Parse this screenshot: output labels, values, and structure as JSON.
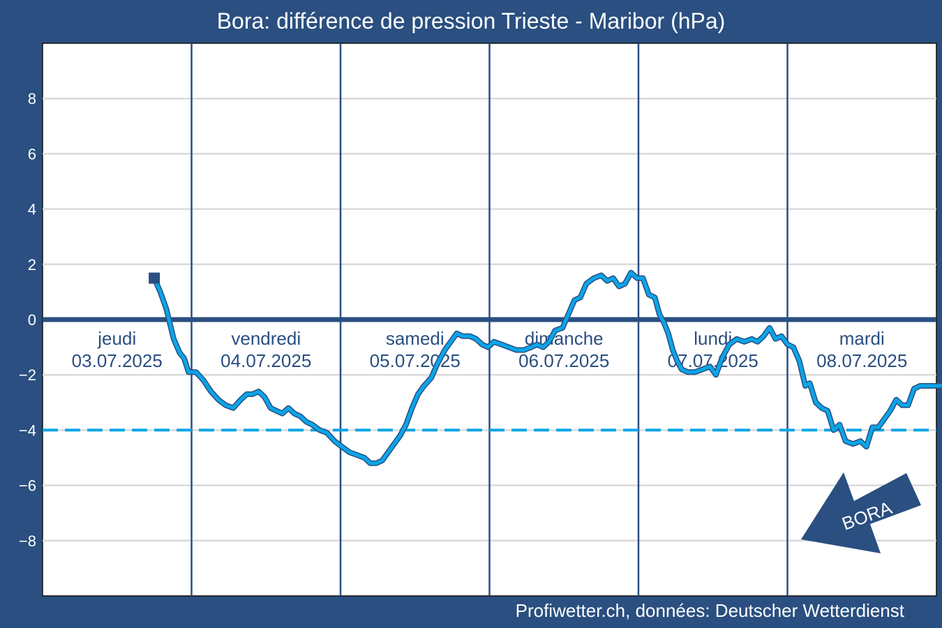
{
  "chart_data": {
    "type": "line",
    "title": "Bora: différence de pression Trieste - Maribor (hPa)",
    "source": "Profiwetter.ch, données: Deutscher Wetterdienst",
    "ylim": [
      -10,
      10
    ],
    "yticks": [
      8,
      6,
      4,
      2,
      0,
      -2,
      -4,
      -6,
      -8
    ],
    "ytick_labels": [
      "8",
      "6",
      "4",
      "2",
      "0",
      "−2",
      "−4",
      "−6",
      "−8"
    ],
    "xlim_days": [
      0,
      6
    ],
    "days": [
      {
        "name": "jeudi",
        "date": "03.07.2025"
      },
      {
        "name": "vendredi",
        "date": "04.07.2025"
      },
      {
        "name": "samedi",
        "date": "05.07.2025"
      },
      {
        "name": "dimanche",
        "date": "06.07.2025"
      },
      {
        "name": "lundi",
        "date": "07.07.2025"
      },
      {
        "name": "mardi",
        "date": "08.07.2025"
      }
    ],
    "reference_lines": [
      {
        "value": 0,
        "style": "solid",
        "color": "#2a4f80"
      },
      {
        "value": -4,
        "style": "dashed",
        "color": "#0aa5e8"
      }
    ],
    "annotation": {
      "text": "BORA",
      "placement": "bottom-right"
    },
    "series": [
      {
        "color": "#0aa5e8",
        "start_marker": "square",
        "points": [
          [
            0.75,
            1.5
          ],
          [
            0.79,
            1.0
          ],
          [
            0.83,
            0.4
          ],
          [
            0.88,
            -0.7
          ],
          [
            0.92,
            -1.2
          ],
          [
            0.95,
            -1.4
          ],
          [
            0.98,
            -1.9
          ],
          [
            1.03,
            -1.9
          ],
          [
            1.08,
            -2.2
          ],
          [
            1.13,
            -2.6
          ],
          [
            1.18,
            -2.9
          ],
          [
            1.23,
            -3.1
          ],
          [
            1.28,
            -3.2
          ],
          [
            1.33,
            -2.9
          ],
          [
            1.37,
            -2.7
          ],
          [
            1.41,
            -2.7
          ],
          [
            1.45,
            -2.6
          ],
          [
            1.49,
            -2.8
          ],
          [
            1.53,
            -3.2
          ],
          [
            1.57,
            -3.3
          ],
          [
            1.61,
            -3.4
          ],
          [
            1.65,
            -3.2
          ],
          [
            1.69,
            -3.4
          ],
          [
            1.73,
            -3.5
          ],
          [
            1.77,
            -3.7
          ],
          [
            1.81,
            -3.8
          ],
          [
            1.86,
            -4.0
          ],
          [
            1.91,
            -4.1
          ],
          [
            1.96,
            -4.4
          ],
          [
            2.01,
            -4.6
          ],
          [
            2.06,
            -4.8
          ],
          [
            2.11,
            -4.9
          ],
          [
            2.16,
            -5.0
          ],
          [
            2.2,
            -5.2
          ],
          [
            2.24,
            -5.2
          ],
          [
            2.28,
            -5.1
          ],
          [
            2.32,
            -4.8
          ],
          [
            2.36,
            -4.5
          ],
          [
            2.4,
            -4.2
          ],
          [
            2.44,
            -3.8
          ],
          [
            2.48,
            -3.2
          ],
          [
            2.52,
            -2.7
          ],
          [
            2.56,
            -2.4
          ],
          [
            2.61,
            -2.1
          ],
          [
            2.65,
            -1.6
          ],
          [
            2.7,
            -1.1
          ],
          [
            2.74,
            -0.8
          ],
          [
            2.78,
            -0.5
          ],
          [
            2.82,
            -0.6
          ],
          [
            2.87,
            -0.6
          ],
          [
            2.91,
            -0.7
          ],
          [
            2.95,
            -0.9
          ],
          [
            2.99,
            -1.0
          ],
          [
            3.03,
            -0.8
          ],
          [
            3.08,
            -0.9
          ],
          [
            3.13,
            -1.0
          ],
          [
            3.18,
            -1.1
          ],
          [
            3.23,
            -1.1
          ],
          [
            3.28,
            -1.0
          ],
          [
            3.32,
            -0.9
          ],
          [
            3.36,
            -1.0
          ],
          [
            3.4,
            -0.8
          ],
          [
            3.44,
            -0.4
          ],
          [
            3.49,
            -0.3
          ],
          [
            3.53,
            0.2
          ],
          [
            3.57,
            0.7
          ],
          [
            3.61,
            0.8
          ],
          [
            3.65,
            1.3
          ],
          [
            3.7,
            1.5
          ],
          [
            3.75,
            1.6
          ],
          [
            3.79,
            1.4
          ],
          [
            3.83,
            1.5
          ],
          [
            3.87,
            1.2
          ],
          [
            3.91,
            1.3
          ],
          [
            3.95,
            1.7
          ],
          [
            3.99,
            1.5
          ],
          [
            4.03,
            1.5
          ],
          [
            4.07,
            0.9
          ],
          [
            4.11,
            0.8
          ],
          [
            4.14,
            0.2
          ],
          [
            4.17,
            -0.1
          ],
          [
            4.2,
            -0.5
          ],
          [
            4.23,
            -1.1
          ],
          [
            4.26,
            -1.5
          ],
          [
            4.29,
            -1.8
          ],
          [
            4.33,
            -1.9
          ],
          [
            4.38,
            -1.9
          ],
          [
            4.43,
            -1.8
          ],
          [
            4.48,
            -1.7
          ],
          [
            4.52,
            -2.0
          ],
          [
            4.56,
            -1.4
          ],
          [
            4.61,
            -0.9
          ],
          [
            4.66,
            -0.7
          ],
          [
            4.71,
            -0.8
          ],
          [
            4.76,
            -0.7
          ],
          [
            4.8,
            -0.8
          ],
          [
            4.84,
            -0.6
          ],
          [
            4.88,
            -0.3
          ],
          [
            4.92,
            -0.7
          ],
          [
            4.96,
            -0.6
          ],
          [
            5.0,
            -0.9
          ],
          [
            5.04,
            -1.0
          ],
          [
            5.08,
            -1.5
          ],
          [
            5.12,
            -2.4
          ],
          [
            5.15,
            -2.3
          ],
          [
            5.19,
            -3.0
          ],
          [
            5.23,
            -3.2
          ],
          [
            5.27,
            -3.3
          ],
          [
            5.31,
            -4.0
          ],
          [
            5.35,
            -3.8
          ],
          [
            5.39,
            -4.4
          ],
          [
            5.44,
            -4.5
          ],
          [
            5.49,
            -4.4
          ],
          [
            5.53,
            -4.6
          ],
          [
            5.57,
            -3.9
          ],
          [
            5.61,
            -3.9
          ],
          [
            5.65,
            -3.6
          ],
          [
            5.69,
            -3.3
          ],
          [
            5.73,
            -2.9
          ],
          [
            5.77,
            -3.1
          ],
          [
            5.81,
            -3.1
          ],
          [
            5.85,
            -2.5
          ],
          [
            5.89,
            -2.4
          ],
          [
            5.93,
            -2.4
          ],
          [
            5.97,
            -2.4
          ],
          [
            6.01,
            -2.4
          ],
          [
            6.05,
            -2.4
          ],
          [
            6.09,
            -2.4
          ],
          [
            6.12,
            -2.2
          ],
          [
            6.16,
            -2.0
          ]
        ]
      }
    ]
  }
}
